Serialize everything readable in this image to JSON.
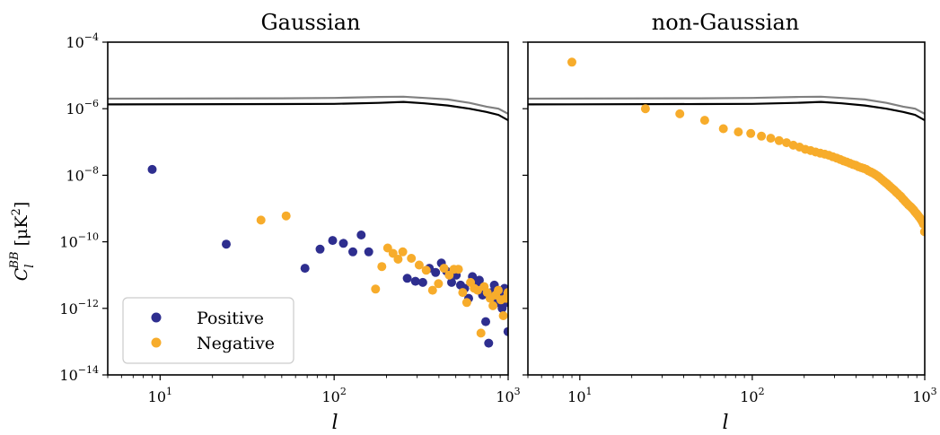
{
  "chart_data": [
    {
      "type": "scatter",
      "title": "Gaussian",
      "xlabel": "l",
      "ylabel": "C_l^{BB} [μK²]",
      "xscale": "log",
      "yscale": "log",
      "xlim": [
        5,
        1000
      ],
      "ylim": [
        1e-14,
        0.0001
      ],
      "x_ticks": [
        {
          "base": "10",
          "exp": "1",
          "value": 10
        },
        {
          "base": "10",
          "exp": "2",
          "value": 100
        },
        {
          "base": "10",
          "exp": "3",
          "value": 1000
        }
      ],
      "y_ticks": [
        {
          "base": "10",
          "exp": "−4",
          "value": 0.0001
        },
        {
          "base": "10",
          "exp": "−6",
          "value": 1e-06
        },
        {
          "base": "10",
          "exp": "−8",
          "value": 1e-08
        },
        {
          "base": "10",
          "exp": "−10",
          "value": 1e-10
        },
        {
          "base": "10",
          "exp": "−12",
          "value": 1e-12
        },
        {
          "base": "10",
          "exp": "−14",
          "value": 1e-14
        }
      ],
      "legend": {
        "position": "lower-left",
        "entries": [
          {
            "label": "Positive",
            "color": "#2e2e8f"
          },
          {
            "label": "Negative",
            "color": "#f7ac2b"
          }
        ]
      },
      "lines": [
        {
          "color": "#808080",
          "points": [
            [
              5,
              2e-06
            ],
            [
              50,
              2.05e-06
            ],
            [
              100,
              2.1e-06
            ],
            [
              180,
              2.25e-06
            ],
            [
              250,
              2.3e-06
            ],
            [
              330,
              2.1e-06
            ],
            [
              450,
              1.9e-06
            ],
            [
              600,
              1.5e-06
            ],
            [
              750,
              1.15e-06
            ],
            [
              880,
              1e-06
            ],
            [
              1000,
              7e-07
            ]
          ]
        },
        {
          "color": "#000000",
          "points": [
            [
              5,
              1.35e-06
            ],
            [
              50,
              1.38e-06
            ],
            [
              100,
              1.4e-06
            ],
            [
              180,
              1.5e-06
            ],
            [
              250,
              1.6e-06
            ],
            [
              330,
              1.45e-06
            ],
            [
              450,
              1.25e-06
            ],
            [
              600,
              1e-06
            ],
            [
              750,
              8e-07
            ],
            [
              880,
              6.5e-07
            ],
            [
              1000,
              4.5e-07
            ]
          ]
        }
      ],
      "series": [
        {
          "name": "Positive",
          "color": "#2e2e8f",
          "points": [
            [
              9,
              1.5e-08
            ],
            [
              24,
              8.5e-11
            ],
            [
              68,
              1.6e-11
            ],
            [
              83,
              6e-11
            ],
            [
              98,
              1.1e-10
            ],
            [
              113,
              9e-11
            ],
            [
              128,
              5e-11
            ],
            [
              143,
              1.6e-10
            ],
            [
              158,
              5e-11
            ],
            [
              263,
              8e-12
            ],
            [
              293,
              6.5e-12
            ],
            [
              323,
              6e-12
            ],
            [
              353,
              1.6e-11
            ],
            [
              383,
              1.2e-11
            ],
            [
              413,
              2.3e-11
            ],
            [
              443,
              1.3e-11
            ],
            [
              473,
              6e-12
            ],
            [
              503,
              1e-11
            ],
            [
              533,
              5e-12
            ],
            [
              563,
              4e-12
            ],
            [
              593,
              2e-12
            ],
            [
              623,
              9e-12
            ],
            [
              653,
              5.5e-12
            ],
            [
              683,
              7e-12
            ],
            [
              713,
              2.5e-12
            ],
            [
              743,
              4e-13
            ],
            [
              773,
              9e-14
            ],
            [
              803,
              3e-12
            ],
            [
              833,
              5e-12
            ],
            [
              863,
              1.5e-12
            ],
            [
              893,
              2.5e-12
            ],
            [
              923,
              1e-12
            ],
            [
              953,
              4e-12
            ],
            [
              983,
              1.5e-12
            ],
            [
              998,
              2e-13
            ]
          ]
        },
        {
          "name": "Negative",
          "color": "#f7ac2b",
          "points": [
            [
              38,
              4.5e-10
            ],
            [
              53,
              6e-10
            ],
            [
              173,
              3.8e-12
            ],
            [
              188,
              1.8e-11
            ],
            [
              203,
              6.5e-11
            ],
            [
              218,
              4.5e-11
            ],
            [
              233,
              3e-11
            ],
            [
              248,
              5e-11
            ],
            [
              278,
              3.2e-11
            ],
            [
              308,
              2e-11
            ],
            [
              338,
              1.4e-11
            ],
            [
              368,
              3.5e-12
            ],
            [
              398,
              5.5e-12
            ],
            [
              428,
              1.6e-11
            ],
            [
              458,
              1e-11
            ],
            [
              488,
              1.5e-11
            ],
            [
              518,
              1.5e-11
            ],
            [
              548,
              3e-12
            ],
            [
              578,
              1.5e-12
            ],
            [
              608,
              6e-12
            ],
            [
              638,
              4e-12
            ],
            [
              668,
              3.5e-12
            ],
            [
              698,
              1.8e-13
            ],
            [
              728,
              4.5e-12
            ],
            [
              758,
              3e-12
            ],
            [
              788,
              2e-12
            ],
            [
              818,
              1.2e-12
            ],
            [
              848,
              2.5e-12
            ],
            [
              878,
              3.5e-12
            ],
            [
              908,
              1.8e-12
            ],
            [
              938,
              6e-13
            ],
            [
              968,
              2e-12
            ],
            [
              998,
              3e-12
            ]
          ]
        }
      ]
    },
    {
      "type": "scatter",
      "title": "non-Gaussian",
      "xlabel": "l",
      "xscale": "log",
      "yscale": "log",
      "xlim": [
        5,
        1000
      ],
      "ylim": [
        1e-14,
        0.0001
      ],
      "x_ticks": [
        {
          "base": "10",
          "exp": "1",
          "value": 10
        },
        {
          "base": "10",
          "exp": "2",
          "value": 100
        },
        {
          "base": "10",
          "exp": "3",
          "value": 1000
        }
      ],
      "lines": [
        {
          "color": "#808080",
          "points": [
            [
              5,
              2e-06
            ],
            [
              50,
              2.05e-06
            ],
            [
              100,
              2.1e-06
            ],
            [
              180,
              2.25e-06
            ],
            [
              250,
              2.3e-06
            ],
            [
              330,
              2.1e-06
            ],
            [
              450,
              1.9e-06
            ],
            [
              600,
              1.5e-06
            ],
            [
              750,
              1.15e-06
            ],
            [
              880,
              1e-06
            ],
            [
              1000,
              7e-07
            ]
          ]
        },
        {
          "color": "#000000",
          "points": [
            [
              5,
              1.35e-06
            ],
            [
              50,
              1.38e-06
            ],
            [
              100,
              1.4e-06
            ],
            [
              180,
              1.5e-06
            ],
            [
              250,
              1.6e-06
            ],
            [
              330,
              1.45e-06
            ],
            [
              450,
              1.25e-06
            ],
            [
              600,
              1e-06
            ],
            [
              750,
              8e-07
            ],
            [
              880,
              6.5e-07
            ],
            [
              1000,
              4.5e-07
            ]
          ]
        }
      ],
      "series": [
        {
          "name": "Negative",
          "color": "#f7ac2b",
          "points": [
            [
              9,
              2.5e-05
            ],
            [
              24,
              1e-06
            ],
            [
              38,
              7e-07
            ],
            [
              53,
              4.5e-07
            ],
            [
              68,
              2.5e-07
            ],
            [
              83,
              2e-07
            ],
            [
              98,
              1.8e-07
            ],
            [
              113,
              1.5e-07
            ],
            [
              128,
              1.3e-07
            ],
            [
              143,
              1.1e-07
            ],
            [
              158,
              9.5e-08
            ],
            [
              173,
              8e-08
            ],
            [
              188,
              7e-08
            ],
            [
              203,
              6e-08
            ],
            [
              218,
              5.5e-08
            ],
            [
              233,
              5e-08
            ],
            [
              248,
              4.6e-08
            ],
            [
              263,
              4.3e-08
            ],
            [
              278,
              4e-08
            ],
            [
              293,
              3.6e-08
            ],
            [
              308,
              3.3e-08
            ],
            [
              323,
              3e-08
            ],
            [
              338,
              2.7e-08
            ],
            [
              353,
              2.5e-08
            ],
            [
              368,
              2.3e-08
            ],
            [
              383,
              2.1e-08
            ],
            [
              398,
              2e-08
            ],
            [
              413,
              1.8e-08
            ],
            [
              428,
              1.7e-08
            ],
            [
              443,
              1.6e-08
            ],
            [
              458,
              1.5e-08
            ],
            [
              473,
              1.35e-08
            ],
            [
              488,
              1.25e-08
            ],
            [
              503,
              1.15e-08
            ],
            [
              518,
              1.05e-08
            ],
            [
              533,
              9.5e-09
            ],
            [
              548,
              8.5e-09
            ],
            [
              563,
              7.5e-09
            ],
            [
              578,
              6.7e-09
            ],
            [
              593,
              6e-09
            ],
            [
              608,
              5.4e-09
            ],
            [
              623,
              4.8e-09
            ],
            [
              638,
              4.3e-09
            ],
            [
              653,
              3.9e-09
            ],
            [
              668,
              3.5e-09
            ],
            [
              683,
              3.1e-09
            ],
            [
              698,
              2.8e-09
            ],
            [
              713,
              2.5e-09
            ],
            [
              728,
              2.3e-09
            ],
            [
              743,
              2e-09
            ],
            [
              758,
              1.8e-09
            ],
            [
              773,
              1.6e-09
            ],
            [
              788,
              1.45e-09
            ],
            [
              803,
              1.3e-09
            ],
            [
              818,
              1.2e-09
            ],
            [
              833,
              1.1e-09
            ],
            [
              848,
              1e-09
            ],
            [
              863,
              9e-10
            ],
            [
              878,
              8e-10
            ],
            [
              893,
              7.2e-10
            ],
            [
              908,
              6.5e-10
            ],
            [
              923,
              5.8e-10
            ],
            [
              938,
              5.2e-10
            ],
            [
              953,
              4.6e-10
            ],
            [
              968,
              4e-10
            ],
            [
              983,
              3.4e-10
            ],
            [
              998,
              2e-10
            ]
          ]
        }
      ]
    }
  ]
}
